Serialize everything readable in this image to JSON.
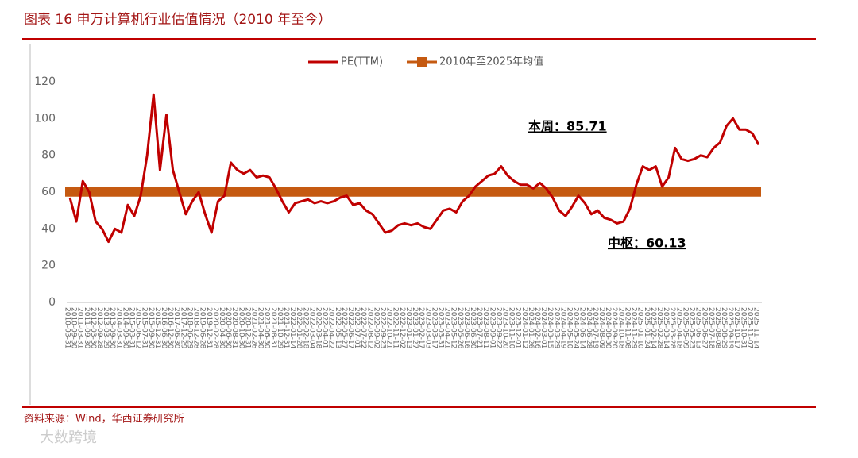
{
  "chart_data": {
    "type": "line",
    "title": "图表 16 申万计算机行业估值情况（2010 年至今）",
    "source": "资料来源：Wind，华西证券研究所",
    "watermark": "大数跨境",
    "categories": [
      "2010-03-31",
      "2010-09-30",
      "2011-03-31",
      "2011-09-30",
      "2012-03-30",
      "2012-09-28",
      "2013-03-29",
      "2013-09-30",
      "2014-03-31",
      "2014-09-30",
      "2015-03-31",
      "2015-06-12",
      "2015-07-31",
      "2015-09-30",
      "2015-12-31",
      "2016-06-30",
      "2016-12-30",
      "2017-06-30",
      "2017-12-29",
      "2018-06-29",
      "2018-12-28",
      "2019-06-28",
      "2019-12-31",
      "2020-02-28",
      "2020-04-30",
      "2020-06-30",
      "2020-08-31",
      "2020-10-30",
      "2020-12-31",
      "2021-02-26",
      "2021-04-30",
      "2021-06-30",
      "2021-08-31",
      "2021-10-29",
      "2021-12-31",
      "2022-01-14",
      "2022-01-28",
      "2022-02-18",
      "2022-03-04",
      "2022-03-18",
      "2022-04-01",
      "2022-04-22",
      "2022-05-13",
      "2022-05-27",
      "2022-06-17",
      "2022-07-01",
      "2022-07-22",
      "2022-08-12",
      "2022-09-02",
      "2022-09-23",
      "2022-10-21",
      "2022-11-11",
      "2022-12-02",
      "2023-01-13",
      "2023-01-27",
      "2023-02-17",
      "2023-03-03",
      "2023-03-17",
      "2023-03-31",
      "2023-04-21",
      "2023-05-12",
      "2023-05-26",
      "2023-06-16",
      "2023-06-30",
      "2023-07-21",
      "2023-08-11",
      "2023-09-01",
      "2023-09-22",
      "2023-10-20",
      "2023-11-10",
      "2023-12-01",
      "2024-01-12",
      "2024-01-26",
      "2024-02-16",
      "2024-03-01",
      "2024-03-15",
      "2024-03-29",
      "2024-04-19",
      "2024-05-10",
      "2024-05-24",
      "2024-06-14",
      "2024-06-28",
      "2024-07-19",
      "2024-08-09",
      "2024-08-30",
      "2024-09-20",
      "2024-10-18",
      "2024-11-08",
      "2024-11-29",
      "2025-01-10",
      "2025-01-24",
      "2025-02-14",
      "2025-02-28",
      "2025-03-14",
      "2025-03-28",
      "2025-04-18",
      "2025-05-09",
      "2025-05-23",
      "2025-06-13",
      "2025-06-27",
      "2025-07-18",
      "2025-08-08",
      "2025-08-29",
      "2025-09-19",
      "2025-10-17",
      "2025-10-31",
      "2025-11-07",
      "2025-11-14"
    ],
    "series": [
      {
        "name": "PE(TTM)",
        "color": "#c00000",
        "values": [
          57,
          44,
          66,
          60,
          44,
          40,
          33,
          40,
          38,
          53,
          47,
          58,
          80,
          113,
          72,
          102,
          72,
          60,
          48,
          55,
          60,
          48,
          38,
          55,
          58,
          76,
          72,
          70,
          72,
          68,
          69,
          68,
          62,
          55,
          49,
          54,
          55,
          56,
          54,
          55,
          54,
          55,
          57,
          58,
          53,
          54,
          50,
          48,
          43,
          38,
          39,
          42,
          43,
          42,
          43,
          41,
          40,
          45,
          50,
          51,
          49,
          55,
          58,
          63,
          66,
          69,
          70,
          74,
          69,
          66,
          64,
          64,
          62,
          65,
          62,
          57,
          50,
          47,
          52,
          58,
          54,
          48,
          50,
          46,
          45,
          43,
          44,
          51,
          64,
          74,
          72,
          74,
          63,
          68,
          84,
          78,
          77,
          78,
          80,
          79,
          84,
          87,
          96,
          100,
          94,
          94,
          92,
          85.71
        ]
      }
    ],
    "mean": {
      "name": "2010年至2025年均值",
      "color": "#c55a11",
      "value": 60.13
    },
    "annotations": [
      {
        "text": "本周：85.71"
      },
      {
        "text": "中枢：60.13"
      }
    ],
    "ylim": [
      0,
      120
    ],
    "yticks": [
      0,
      20,
      40,
      60,
      80,
      100,
      120
    ],
    "grid": false
  }
}
